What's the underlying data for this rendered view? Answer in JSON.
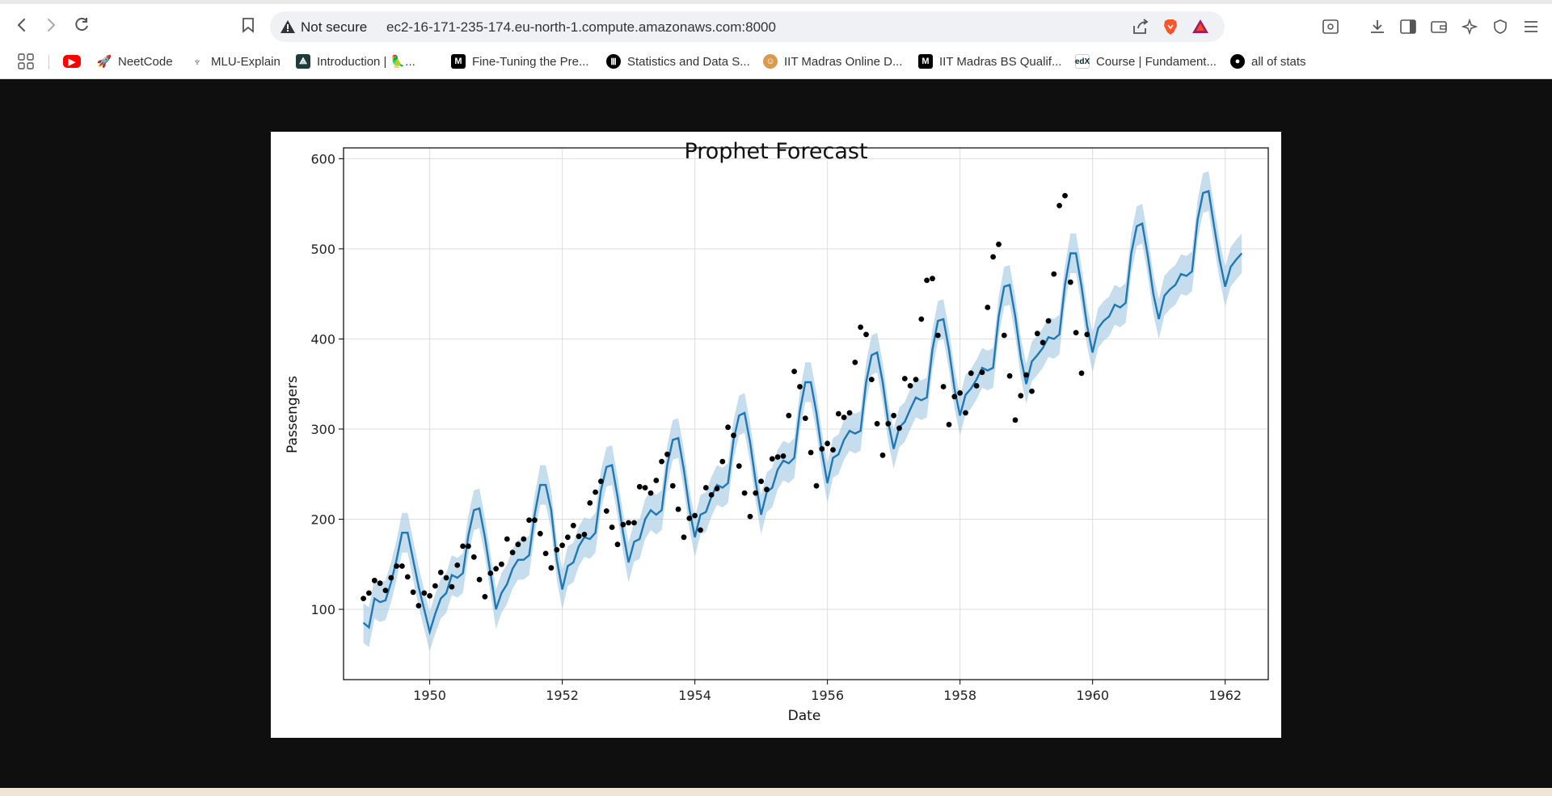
{
  "browser": {
    "security_label": "Not secure",
    "url": "ec2-16-171-235-174.eu-north-1.compute.amazonaws.com:8000",
    "bookmarks": [
      {
        "label": "",
        "icon": "youtube-icon"
      },
      {
        "label": "NeetCode",
        "icon": "rocket-icon"
      },
      {
        "label": "MLU-Explain",
        "icon": "mlu-icon"
      },
      {
        "label": "Introduction | 🦜...",
        "icon": "langchain-icon"
      },
      {
        "label": "Fine-Tuning the Pre...",
        "icon": "medium-icon"
      },
      {
        "label": "Statistics and Data S...",
        "icon": "iitm-icon"
      },
      {
        "label": "IIT Madras Online D...",
        "icon": "smiley-icon"
      },
      {
        "label": "IIT Madras BS Qualif...",
        "icon": "medium-icon"
      },
      {
        "label": "Course | Fundament...",
        "icon": "edx-icon"
      },
      {
        "label": "all of stats",
        "icon": "github-icon"
      }
    ]
  },
  "chart_data": {
    "type": "line",
    "title": "Prophet Forecast",
    "xlabel": "Date",
    "ylabel": "Passengers",
    "xlim": [
      1948.7,
      1962.65
    ],
    "ylim": [
      22,
      612
    ],
    "xticks": [
      "1950",
      "1952",
      "1954",
      "1956",
      "1958",
      "1960",
      "1962"
    ],
    "yticks": [
      "100",
      "200",
      "300",
      "400",
      "500",
      "600"
    ],
    "grid": true,
    "colors": {
      "forecast": "#1f77b4",
      "band": "#a6cbe3",
      "points": "#000000"
    },
    "actual": {
      "start": 1949.0,
      "step": 0.08333,
      "values": [
        112,
        118,
        132,
        129,
        121,
        135,
        148,
        148,
        136,
        119,
        104,
        118,
        115,
        126,
        141,
        135,
        125,
        149,
        170,
        170,
        158,
        133,
        114,
        140,
        145,
        150,
        178,
        163,
        172,
        178,
        199,
        199,
        184,
        162,
        146,
        166,
        171,
        180,
        193,
        181,
        183,
        218,
        230,
        242,
        209,
        191,
        172,
        194,
        196,
        196,
        236,
        235,
        229,
        243,
        264,
        272,
        237,
        211,
        180,
        201,
        204,
        188,
        235,
        227,
        234,
        264,
        302,
        293,
        259,
        229,
        203,
        229,
        242,
        233,
        267,
        269,
        270,
        315,
        364,
        347,
        312,
        274,
        237,
        278,
        284,
        277,
        317,
        313,
        318,
        374,
        413,
        405,
        355,
        306,
        271,
        306,
        315,
        301,
        356,
        348,
        355,
        422,
        465,
        467,
        404,
        347,
        305,
        336,
        340,
        318,
        362,
        348,
        363,
        435,
        491,
        505,
        404,
        359,
        310,
        337,
        360,
        342,
        406,
        396,
        420,
        472,
        548,
        559,
        463,
        407,
        362,
        405
      ]
    },
    "forecast": {
      "start": 1949.0,
      "step": 0.08333,
      "values": [
        85,
        80,
        112,
        108,
        110,
        130,
        155,
        185,
        185,
        155,
        125,
        100,
        75,
        95,
        112,
        118,
        138,
        135,
        140,
        182,
        210,
        212,
        180,
        140,
        100,
        118,
        128,
        145,
        155,
        155,
        160,
        205,
        238,
        238,
        210,
        155,
        122,
        148,
        152,
        170,
        180,
        178,
        185,
        232,
        258,
        260,
        225,
        185,
        152,
        175,
        178,
        200,
        210,
        205,
        210,
        260,
        288,
        290,
        255,
        212,
        180,
        205,
        208,
        225,
        238,
        235,
        240,
        288,
        315,
        318,
        285,
        242,
        205,
        230,
        235,
        255,
        265,
        262,
        268,
        320,
        352,
        352,
        318,
        275,
        240,
        268,
        272,
        288,
        298,
        295,
        298,
        352,
        382,
        385,
        352,
        308,
        278,
        302,
        308,
        322,
        335,
        332,
        335,
        388,
        420,
        422,
        388,
        345,
        315,
        338,
        345,
        355,
        368,
        365,
        368,
        425,
        458,
        460,
        425,
        380,
        350,
        375,
        382,
        390,
        402,
        400,
        405,
        460,
        495,
        495,
        458,
        415,
        385,
        412,
        420,
        425,
        438,
        435,
        440,
        495,
        525,
        528,
        492,
        450,
        422,
        448,
        455,
        460,
        472,
        470,
        475,
        532,
        562,
        564,
        525,
        488,
        458,
        480,
        488,
        495
      ],
      "band": 22
    }
  }
}
